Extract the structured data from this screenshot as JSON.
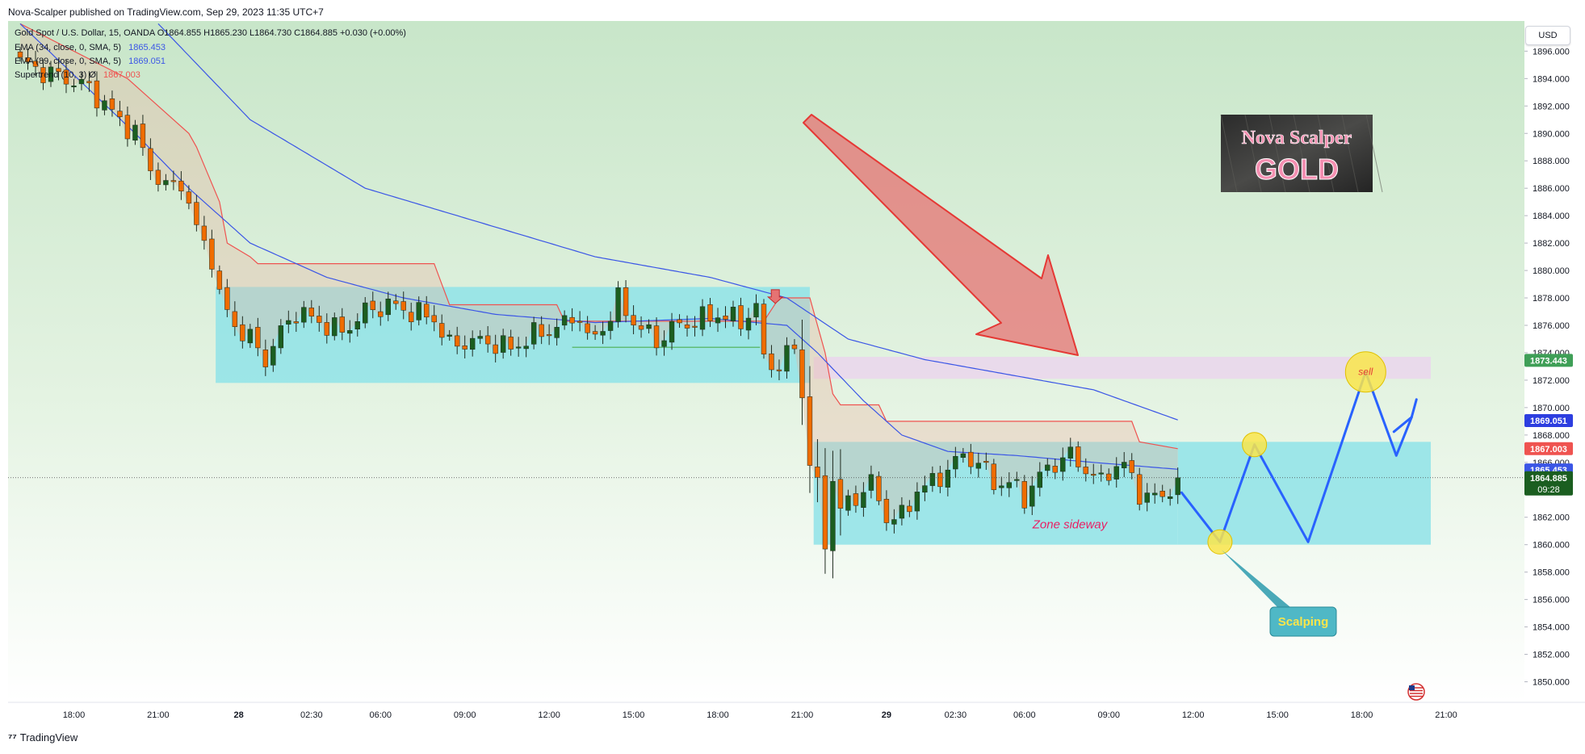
{
  "header": {
    "publish_info": "Nova-Scalper published on TradingView.com, Sep 29, 2023 11:35 UTC+7"
  },
  "footer": {
    "brand": "TradingView"
  },
  "legend": {
    "symbol_line": "Gold Spot / U.S. Dollar, 15, OANDA  O1864.855  H1865.230  L1864.730  C1864.885  +0.030 (+0.00%)",
    "ema1_line": "EMA (34, close, 0, SMA, 5)",
    "ema1_value": "1865.453",
    "ema2_line": "EMA (89, close, 0, SMA, 5)",
    "ema2_value": "1869.051",
    "supertrend_line": "Supertrend (10, 3)  Ø",
    "supertrend_value": "1867.003"
  },
  "currency": "USD",
  "colors": {
    "bull": "#1b5e20",
    "bear": "#ef6c00",
    "ema": "#3b56e6",
    "supertrend": "#ef5350",
    "zone": "#8fe3e8",
    "arrow_red": "#e57373",
    "path_blue": "#2962ff",
    "marker_yellow": "#f9e54b"
  },
  "annotations": {
    "zone_label": "Zone sideway",
    "scalping_label": "Scalping",
    "sell_label": "sell",
    "logo_line1": "Nova Scalper",
    "logo_line2": "GOLD"
  },
  "price_tags": {
    "resistance": "1873.443",
    "ema89": "1869.051",
    "supertrend": "1867.003",
    "ema34": "1865.453",
    "last": "1864.885",
    "countdown": "09:28"
  },
  "chart_data": {
    "type": "candlestick",
    "symbol": "XAUUSD",
    "timeframe": "15",
    "yticks": [
      "1896.000",
      "1894.000",
      "1892.000",
      "1890.000",
      "1888.000",
      "1886.000",
      "1884.000",
      "1882.000",
      "1880.000",
      "1878.000",
      "1876.000",
      "1874.000",
      "1872.000",
      "1870.000",
      "1868.000",
      "1866.000",
      "1864.000",
      "1862.000",
      "1860.000",
      "1858.000",
      "1856.000",
      "1854.000",
      "1852.000",
      "1850.000"
    ],
    "ytick_values": [
      1896,
      1894,
      1892,
      1890,
      1888,
      1886,
      1884,
      1882,
      1880,
      1878,
      1876,
      1874,
      1872,
      1870,
      1868,
      1866,
      1864,
      1862,
      1860,
      1858,
      1856,
      1854,
      1852,
      1850
    ],
    "ylim": [
      1848.5,
      1898.2
    ],
    "xlim": [
      0,
      188
    ],
    "xticks": [
      {
        "i": 7,
        "label": "18:00",
        "bold": false
      },
      {
        "i": 18,
        "label": "21:00",
        "bold": false
      },
      {
        "i": 28.5,
        "label": "28",
        "bold": true
      },
      {
        "i": 38,
        "label": "02:30",
        "bold": false
      },
      {
        "i": 47,
        "label": "06:00",
        "bold": false
      },
      {
        "i": 58,
        "label": "09:00",
        "bold": false
      },
      {
        "i": 69,
        "label": "12:00",
        "bold": false
      },
      {
        "i": 80,
        "label": "15:00",
        "bold": false
      },
      {
        "i": 91,
        "label": "18:00",
        "bold": false
      },
      {
        "i": 102,
        "label": "21:00",
        "bold": false
      },
      {
        "i": 113,
        "label": "29",
        "bold": true
      },
      {
        "i": 122,
        "label": "02:30",
        "bold": false
      },
      {
        "i": 131,
        "label": "06:00",
        "bold": false
      },
      {
        "i": 142,
        "label": "09:00",
        "bold": false
      },
      {
        "i": 153,
        "label": "12:00",
        "bold": false
      },
      {
        "i": 164,
        "label": "15:00",
        "bold": false
      },
      {
        "i": 175,
        "label": "18:00",
        "bold": false
      },
      {
        "i": 186,
        "label": "21:00",
        "bold": false
      }
    ],
    "last_price": 1864.885,
    "candle_anchors": [
      [
        0,
        1895.2
      ],
      [
        3,
        1894.5
      ],
      [
        6,
        1894.0
      ],
      [
        9,
        1893.3
      ],
      [
        12,
        1891.5
      ],
      [
        15,
        1890.0
      ],
      [
        17,
        1887.5
      ],
      [
        19,
        1886.0
      ],
      [
        21,
        1886.5
      ],
      [
        23,
        1883.0
      ],
      [
        25,
        1881.0
      ],
      [
        26,
        1878.0
      ],
      [
        28,
        1876.0
      ],
      [
        30,
        1875.0
      ],
      [
        32,
        1873.5
      ],
      [
        34,
        1875.5
      ],
      [
        36,
        1877.0
      ],
      [
        38,
        1876.5
      ],
      [
        40,
        1876.0
      ],
      [
        42,
        1875.5
      ],
      [
        45,
        1877.0
      ],
      [
        48,
        1877.5
      ],
      [
        51,
        1877.0
      ],
      [
        54,
        1876.5
      ],
      [
        56,
        1874.5
      ],
      [
        58,
        1874.8
      ],
      [
        61,
        1874.8
      ],
      [
        64,
        1874.3
      ],
      [
        67,
        1875.3
      ],
      [
        70,
        1875.8
      ],
      [
        73,
        1876.8
      ],
      [
        74,
        1874.8
      ],
      [
        76,
        1875.8
      ],
      [
        78,
        1877.8
      ],
      [
        80,
        1876.3
      ],
      [
        83,
        1874.8
      ],
      [
        85,
        1875.8
      ],
      [
        88,
        1876.3
      ],
      [
        91,
        1876.8
      ],
      [
        94,
        1876.3
      ],
      [
        96,
        1877.3
      ],
      [
        97,
        1873.5
      ],
      [
        99,
        1873.0
      ],
      [
        101,
        1874.5
      ],
      [
        102,
        1871.0
      ],
      [
        103,
        1866.0
      ],
      [
        104,
        1864.0
      ],
      [
        105,
        1860.3
      ],
      [
        106,
        1864.8
      ],
      [
        107,
        1862.5
      ],
      [
        109,
        1863.5
      ],
      [
        111,
        1864.5
      ],
      [
        113,
        1862.0
      ],
      [
        115,
        1862.0
      ],
      [
        117,
        1864.0
      ],
      [
        119,
        1864.5
      ],
      [
        121,
        1865.5
      ],
      [
        123,
        1866.5
      ],
      [
        125,
        1866.0
      ],
      [
        127,
        1864.5
      ],
      [
        129,
        1864.5
      ],
      [
        131,
        1863.5
      ],
      [
        133,
        1865.0
      ],
      [
        135,
        1866.0
      ],
      [
        137,
        1866.5
      ],
      [
        139,
        1865.5
      ],
      [
        141,
        1864.5
      ],
      [
        142,
        1865.5
      ],
      [
        144,
        1865.8
      ],
      [
        146,
        1863.8
      ],
      [
        148,
        1863.3
      ],
      [
        150,
        1864.0
      ],
      [
        151,
        1864.9
      ]
    ],
    "supertrend": [
      [
        0,
        1898
      ],
      [
        14,
        1894
      ],
      [
        22,
        1890
      ],
      [
        23,
        1889
      ],
      [
        26,
        1885
      ],
      [
        27,
        1882
      ],
      [
        30,
        1881
      ],
      [
        31,
        1880.5
      ],
      [
        54,
        1880.5
      ],
      [
        55,
        1879
      ],
      [
        56,
        1877.5
      ],
      [
        70,
        1877.5
      ],
      [
        71,
        1876.3
      ],
      [
        97,
        1876.3
      ],
      [
        99,
        1878.0
      ],
      [
        103,
        1878.0
      ],
      [
        105,
        1874.0
      ],
      [
        106,
        1871.0
      ],
      [
        107,
        1870.2
      ],
      [
        112,
        1870.2
      ],
      [
        113,
        1869.0
      ],
      [
        145,
        1869.0
      ],
      [
        146,
        1867.5
      ],
      [
        151,
        1867.0
      ]
    ],
    "ema89": [
      [
        18,
        1898
      ],
      [
        30,
        1891
      ],
      [
        45,
        1886
      ],
      [
        60,
        1883.5
      ],
      [
        75,
        1881
      ],
      [
        90,
        1879.5
      ],
      [
        100,
        1878
      ],
      [
        108,
        1875
      ],
      [
        118,
        1873.5
      ],
      [
        130,
        1872.3
      ],
      [
        140,
        1871.3
      ],
      [
        151,
        1869.1
      ]
    ],
    "ema34": [
      [
        0,
        1898
      ],
      [
        15,
        1890
      ],
      [
        22,
        1886
      ],
      [
        30,
        1882
      ],
      [
        40,
        1879.5
      ],
      [
        50,
        1878
      ],
      [
        62,
        1876.8
      ],
      [
        75,
        1876.2
      ],
      [
        90,
        1876.5
      ],
      [
        100,
        1876
      ],
      [
        104,
        1874
      ],
      [
        110,
        1870.5
      ],
      [
        115,
        1868
      ],
      [
        121,
        1866.8
      ],
      [
        130,
        1866.5
      ],
      [
        140,
        1866
      ],
      [
        151,
        1865.5
      ]
    ],
    "zones": [
      {
        "x0": 25.5,
        "x1": 103,
        "y0": 1871.8,
        "y1": 1878.8
      },
      {
        "x0": 103.5,
        "x1": 151,
        "y0": 1860.0,
        "y1": 1867.5
      },
      {
        "x0": 151,
        "x1": 184,
        "y0": 1860.0,
        "y1": 1867.5
      }
    ],
    "resistance_zone": {
      "x0": 103.5,
      "x1": 184,
      "y0": 1872.1,
      "y1": 1873.7
    },
    "green_line": {
      "x0": 72,
      "x1": 96.5,
      "y": 1874.4
    },
    "projection_path": [
      [
        151.5,
        1863.8
      ],
      [
        156.5,
        1860.2
      ],
      [
        161,
        1867.3
      ],
      [
        168,
        1860.2
      ],
      [
        175.5,
        1872.6
      ],
      [
        179.5,
        1866.5
      ],
      [
        181.5,
        1869.3
      ]
    ],
    "yellow_markers": [
      {
        "x": 156.5,
        "y": 1860.2,
        "size": "small"
      },
      {
        "x": 161,
        "y": 1867.3,
        "size": "small"
      },
      {
        "x": 175.5,
        "y": 1872.6,
        "size": "large"
      }
    ]
  }
}
